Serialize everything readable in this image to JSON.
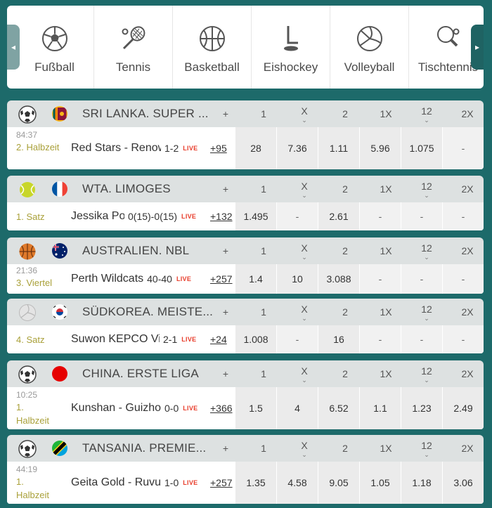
{
  "sports": [
    {
      "label": "Fußball",
      "icon": "soccer-ball-icon"
    },
    {
      "label": "Tennis",
      "icon": "tennis-racket-icon"
    },
    {
      "label": "Basketball",
      "icon": "basketball-icon"
    },
    {
      "label": "Eishockey",
      "icon": "ice-hockey-icon"
    },
    {
      "label": "Volleyball",
      "icon": "volleyball-icon"
    },
    {
      "label": "Tischtennis",
      "icon": "table-tennis-icon"
    }
  ],
  "nav": {
    "left_arrow": "◂",
    "right_arrow": "▸"
  },
  "columns": {
    "more": "+",
    "c1": "1",
    "cx": "X",
    "c2": "2",
    "c1x": "1X",
    "c12": "12",
    "c2x": "2X"
  },
  "live_label": "LIVE",
  "matches": [
    {
      "sport_icon": "soccer-ball-icon",
      "flag": "sri-lanka-flag-icon",
      "league": "SRI LANKA. SUPER ...",
      "clock": "84:37",
      "period": "2. Halbzeit",
      "teams": "Red Stars - Renown",
      "score": "1-2",
      "more": "+95",
      "odds": [
        "28",
        "7.36",
        "1.11",
        "5.96",
        "1.075",
        "-"
      ]
    },
    {
      "sport_icon": "tennis-ball-icon",
      "flag": "france-flag-icon",
      "league": "WTA. LIMOGES",
      "clock": "",
      "period": "1. Satz",
      "teams": "Jessika Ponchet",
      "score": "0(15)-0(15)",
      "more": "+132",
      "odds": [
        "1.495",
        "-",
        "2.61",
        "-",
        "-",
        "-"
      ]
    },
    {
      "sport_icon": "basketball-icon",
      "flag": "australia-flag-icon",
      "league": "AUSTRALIEN. NBL",
      "clock": "21:36",
      "period": "3. Viertel",
      "teams": "Perth Wildcats",
      "score": "40-40",
      "more": "+257",
      "odds": [
        "1.4",
        "10",
        "3.088",
        "-",
        "-",
        "-"
      ]
    },
    {
      "sport_icon": "volleyball-icon",
      "flag": "south-korea-flag-icon",
      "league": "SÜDKOREA. MEISTE...",
      "clock": "",
      "period": "4. Satz",
      "teams": "Suwon KEPCO Vixtorm",
      "score": "2-1",
      "more": "+24",
      "odds": [
        "1.008",
        "-",
        "16",
        "-",
        "-",
        "-"
      ]
    },
    {
      "sport_icon": "soccer-ball-icon",
      "flag": "china-flag-icon",
      "league": "CHINA. ERSTE LIGA",
      "clock": "10:25",
      "period": "1. Halbzeit",
      "teams": "Kunshan - Guizhou",
      "score": "0-0",
      "more": "+366",
      "odds": [
        "1.5",
        "4",
        "6.52",
        "1.1",
        "1.23",
        "2.49"
      ]
    },
    {
      "sport_icon": "soccer-ball-icon",
      "flag": "tanzania-flag-icon",
      "league": "TANSANIA. PREMIE...",
      "clock": "44:19",
      "period": "1. Halbzeit",
      "teams": "Geita Gold - Ruvu",
      "score": "1-0",
      "more": "+257",
      "odds": [
        "1.35",
        "4.58",
        "9.05",
        "1.05",
        "1.18",
        "3.06"
      ]
    }
  ]
}
